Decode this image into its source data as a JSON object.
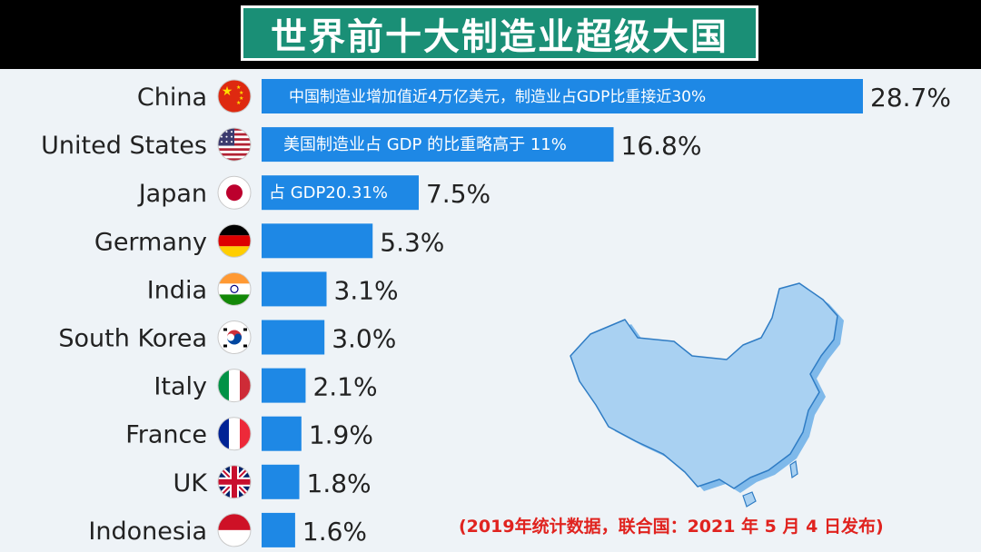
{
  "title": "世界前十大制造业超级大国",
  "source_note": "(2019年统计数据，联合国：2021 年 5 月 4 日发布)",
  "chart_data": {
    "type": "bar",
    "orientation": "horizontal",
    "value_unit": "%",
    "max_value": 28.7,
    "bar_color": "#1e88e5",
    "categories": [
      {
        "name": "China",
        "value": 28.7,
        "value_label": "28.7%",
        "flag": "china-flag-icon",
        "annotation": "中国制造业增加值近4万亿美元，制造业占GDP比重接近30%"
      },
      {
        "name": "United States",
        "value": 16.8,
        "value_label": "16.8%",
        "flag": "usa-flag-icon",
        "annotation": "美国制造业占 GDP 的比重略高于 11%"
      },
      {
        "name": "Japan",
        "value": 7.5,
        "value_label": "7.5%",
        "flag": "japan-flag-icon",
        "annotation": "占 GDP20.31%"
      },
      {
        "name": "Germany",
        "value": 5.3,
        "value_label": "5.3%",
        "flag": "germany-flag-icon",
        "annotation": ""
      },
      {
        "name": "India",
        "value": 3.1,
        "value_label": "3.1%",
        "flag": "india-flag-icon",
        "annotation": ""
      },
      {
        "name": "South Korea",
        "value": 3.0,
        "value_label": "3.0%",
        "flag": "south-korea-flag-icon",
        "annotation": ""
      },
      {
        "name": "Italy",
        "value": 2.1,
        "value_label": "2.1%",
        "flag": "italy-flag-icon",
        "annotation": ""
      },
      {
        "name": "France",
        "value": 1.9,
        "value_label": "1.9%",
        "flag": "france-flag-icon",
        "annotation": ""
      },
      {
        "name": "UK",
        "value": 1.8,
        "value_label": "1.8%",
        "flag": "uk-flag-icon",
        "annotation": ""
      },
      {
        "name": "Indonesia",
        "value": 1.6,
        "value_label": "1.6%",
        "flag": "indonesia-flag-icon",
        "annotation": ""
      }
    ]
  },
  "map": {
    "icon": "china-map-icon",
    "fill": "#a9d1f2",
    "shadow": "#7fb9ea",
    "stroke": "#2f7cc4"
  }
}
